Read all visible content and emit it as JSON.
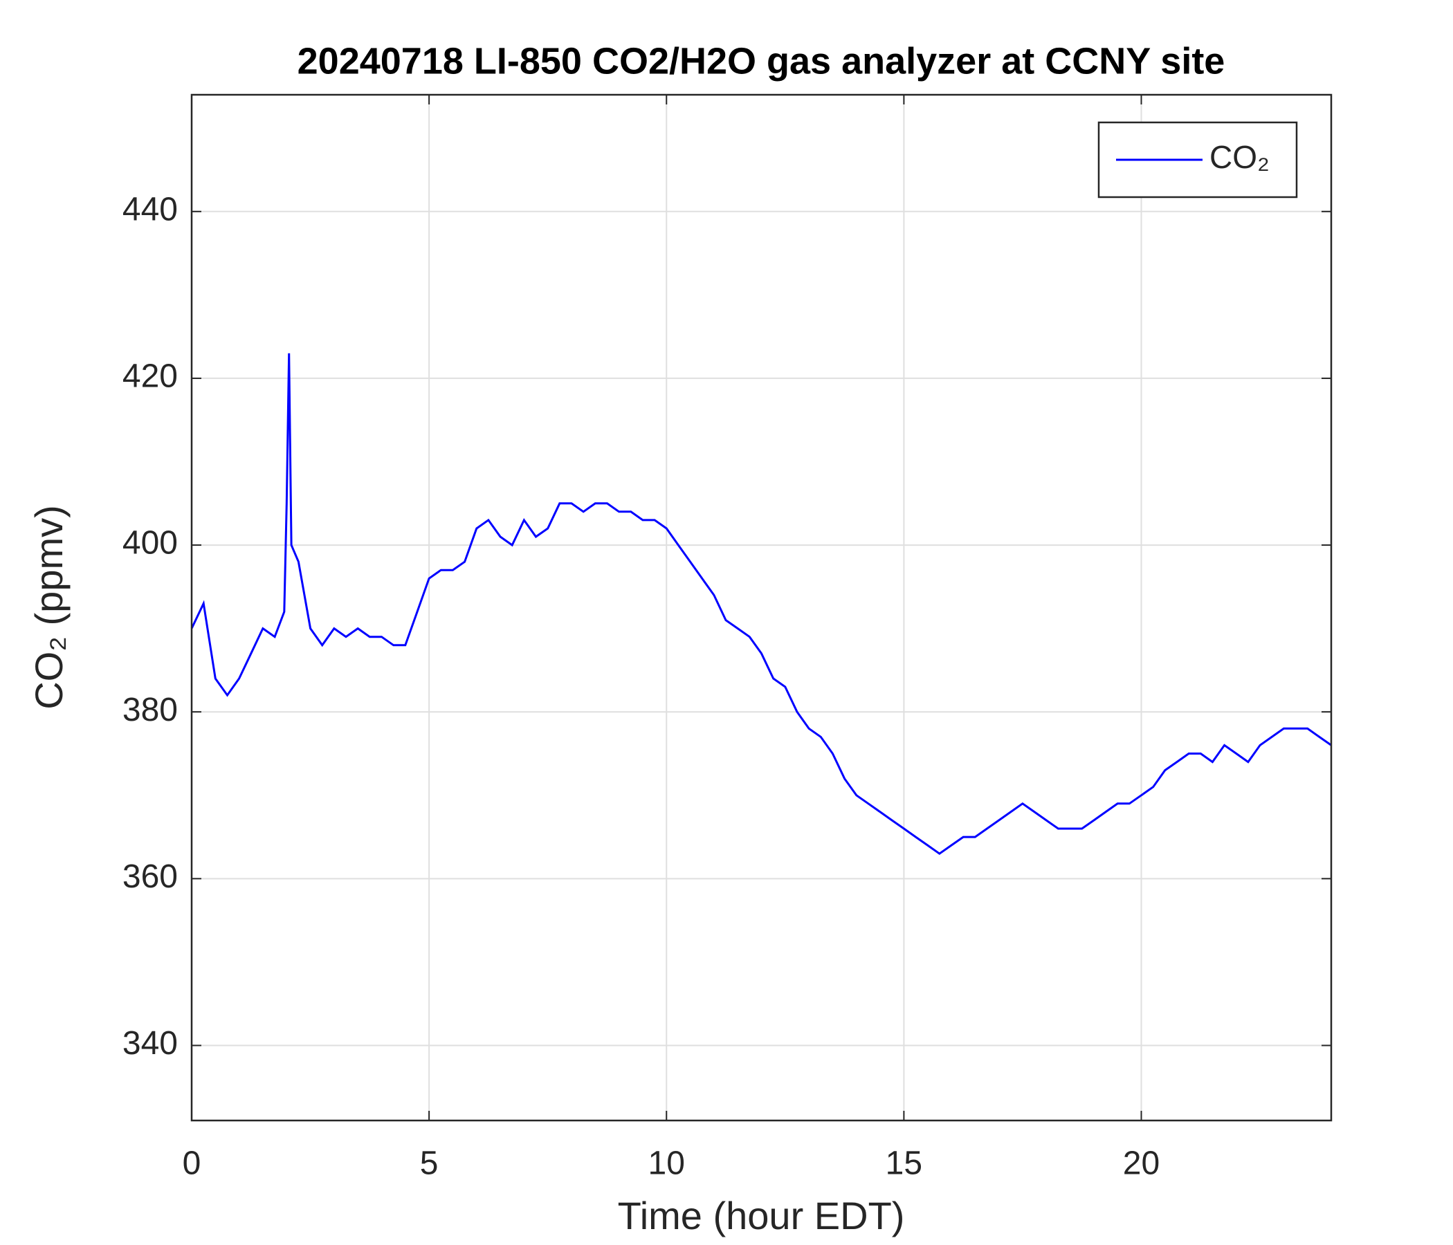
{
  "chart_data": {
    "type": "line",
    "title": "20240718 LI-850 CO2/H2O gas analyzer at CCNY site",
    "x_label": "Time (hour EDT)",
    "y_label": "CO₂ (ppmv)",
    "xlim": [
      0,
      24
    ],
    "ylim": [
      331,
      454
    ],
    "xticks": [
      0,
      5,
      10,
      15,
      20
    ],
    "yticks": [
      340,
      360,
      380,
      400,
      420,
      440
    ],
    "grid": true,
    "legend": "upper right",
    "x": [
      0,
      0.25,
      0.5,
      0.75,
      1.0,
      1.25,
      1.5,
      1.75,
      1.95,
      2.0,
      2.05,
      2.1,
      2.25,
      2.5,
      2.75,
      3.0,
      3.25,
      3.5,
      3.75,
      4.0,
      4.25,
      4.5,
      4.75,
      5.0,
      5.25,
      5.5,
      5.75,
      6.0,
      6.25,
      6.5,
      6.75,
      7.0,
      7.25,
      7.5,
      7.75,
      8.0,
      8.25,
      8.5,
      8.75,
      9.0,
      9.25,
      9.5,
      9.75,
      10.0,
      10.25,
      10.5,
      10.75,
      11.0,
      11.25,
      11.5,
      11.75,
      12.0,
      12.25,
      12.5,
      12.75,
      13.0,
      13.25,
      13.5,
      13.75,
      14.0,
      14.25,
      14.5,
      14.75,
      15.0,
      15.25,
      15.5,
      15.75,
      16.0,
      16.25,
      16.5,
      16.75,
      17.0,
      17.25,
      17.5,
      17.75,
      18.0,
      18.25,
      18.5,
      18.75,
      19.0,
      19.25,
      19.5,
      19.75,
      20.0,
      20.25,
      20.5,
      20.75,
      21.0,
      21.25,
      21.5,
      21.75,
      22.0,
      22.25,
      22.5,
      22.75,
      23.0,
      23.25,
      23.5,
      23.75,
      24.0
    ],
    "series": [
      {
        "name": "CO₂",
        "color": "#0000ff",
        "values": [
          390,
          393,
          384,
          382,
          384,
          387,
          390,
          389,
          392,
          405,
          423,
          400,
          398,
          390,
          388,
          390,
          389,
          390,
          389,
          389,
          388,
          388,
          392,
          396,
          397,
          397,
          398,
          402,
          403,
          401,
          400,
          403,
          401,
          402,
          405,
          405,
          404,
          405,
          405,
          404,
          404,
          403,
          403,
          402,
          400,
          398,
          396,
          394,
          391,
          390,
          389,
          387,
          384,
          383,
          380,
          378,
          377,
          375,
          372,
          370,
          369,
          368,
          367,
          366,
          365,
          364,
          363,
          364,
          365,
          365,
          366,
          367,
          368,
          369,
          368,
          367,
          366,
          366,
          366,
          367,
          368,
          369,
          369,
          370,
          371,
          373,
          374,
          375,
          375,
          374,
          376,
          375,
          374,
          376,
          377,
          378,
          378,
          378,
          377,
          376
        ]
      }
    ]
  }
}
